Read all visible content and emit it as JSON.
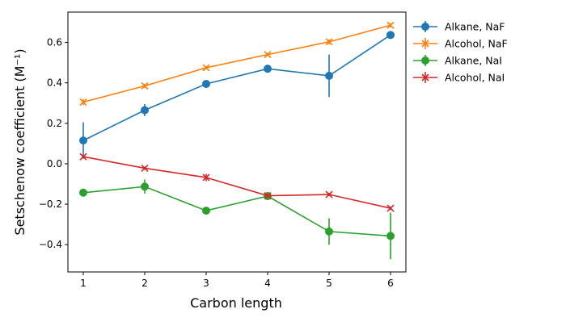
{
  "chart_data": {
    "type": "line",
    "xlabel": "Carbon length",
    "ylabel": "Setschenow coefficient (M⁻¹)",
    "x": [
      1,
      2,
      3,
      4,
      5,
      6
    ],
    "xlim": [
      0.75,
      6.25
    ],
    "ylim": [
      -0.535,
      0.75
    ],
    "xticks": [
      1,
      2,
      3,
      4,
      5,
      6
    ],
    "yticks": [
      -0.4,
      -0.2,
      0.0,
      0.2,
      0.4,
      0.6
    ],
    "ytick_labels": [
      "−0.4",
      "−0.2",
      "0.0",
      "0.2",
      "0.4",
      "0.6"
    ],
    "grid": false,
    "legend_placement": "outside-top-right",
    "series": [
      {
        "name": "Alkane, NaF",
        "color": "#1f77b4",
        "marker": "circle",
        "values": [
          0.115,
          0.265,
          0.395,
          0.47,
          0.435,
          0.637
        ],
        "errors": [
          0.09,
          0.03,
          0.012,
          0.01,
          0.105,
          0.01
        ]
      },
      {
        "name": "Alcohol, NaF",
        "color": "#ff7f0e",
        "marker": "x",
        "values": [
          0.305,
          0.385,
          0.475,
          0.54,
          0.603,
          0.685
        ],
        "errors": [
          0.015,
          0.01,
          0.008,
          0.008,
          0.012,
          0.01
        ]
      },
      {
        "name": "Alkane, NaI",
        "color": "#2ca02c",
        "marker": "circle",
        "values": [
          -0.143,
          -0.113,
          -0.232,
          -0.16,
          -0.335,
          -0.357
        ],
        "errors": [
          0.008,
          0.035,
          0.015,
          0.008,
          0.065,
          0.115
        ]
      },
      {
        "name": "Alcohol, NaI",
        "color": "#d62728",
        "marker": "x",
        "values": [
          0.035,
          -0.022,
          -0.068,
          -0.158,
          -0.152,
          -0.22
        ],
        "errors": [
          0.008,
          0.008,
          0.018,
          0.008,
          0.008,
          0.008
        ]
      }
    ]
  }
}
